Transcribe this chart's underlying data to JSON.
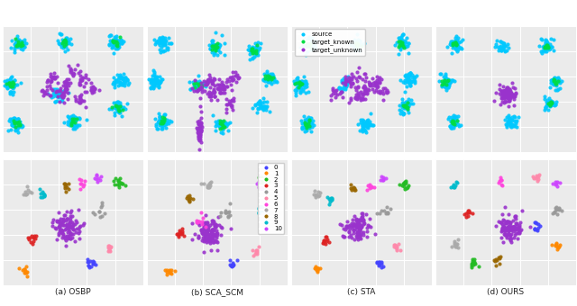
{
  "subplot_titles": [
    "(a) OSBP",
    "(b) SCA_SCM",
    "(c) STA",
    "(d) OURS"
  ],
  "legend1_labels": [
    "source",
    "target_known",
    "target_unknown"
  ],
  "legend1_colors": [
    "#00c8ff",
    "#00dd44",
    "#9933cc"
  ],
  "legend2_labels": [
    "0",
    "1",
    "2",
    "3",
    "4",
    "5",
    "6",
    "7",
    "8",
    "9",
    "10"
  ],
  "legend2_colors": [
    "#4444ff",
    "#ff8800",
    "#22bb22",
    "#dd2222",
    "#999999",
    "#ff88aa",
    "#ff44dd",
    "#aaaaaa",
    "#996600",
    "#00bbcc",
    "#cc44ff"
  ],
  "bg_color": "#ebebeb",
  "grid_color": "#ffffff",
  "fig_bg": "#ffffff",
  "dot_size": 3,
  "alpha": 0.9
}
